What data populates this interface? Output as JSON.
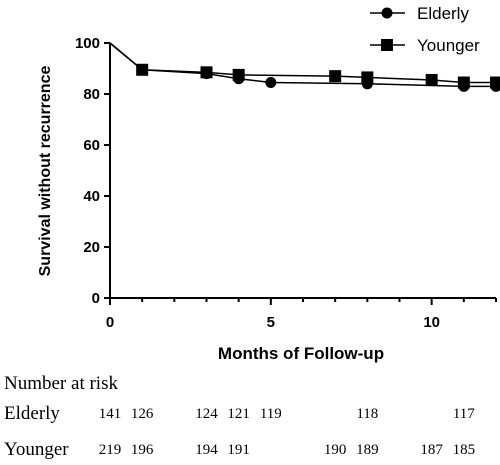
{
  "chart_data": {
    "type": "line",
    "xlabel": "Months of Follow-up",
    "ylabel": "Survival without recurrence",
    "xlim": [
      0,
      12
    ],
    "ylim": [
      0,
      100
    ],
    "xticks": [
      0,
      5,
      10
    ],
    "yticks": [
      0,
      20,
      40,
      60,
      80,
      100
    ],
    "legend_position": "top-right",
    "series": [
      {
        "name": "Elderly",
        "marker": "circle",
        "x": [
          0,
          1,
          3,
          4,
          5,
          8,
          11,
          12
        ],
        "y": [
          100,
          89.5,
          88,
          86,
          84.5,
          84,
          83,
          83
        ],
        "marked_x": [
          1,
          3,
          4,
          5,
          8,
          11,
          12
        ]
      },
      {
        "name": "Younger",
        "marker": "square",
        "x": [
          0,
          1,
          3,
          4,
          7,
          8,
          10,
          11,
          12
        ],
        "y": [
          100,
          89.5,
          88.5,
          87.5,
          87,
          86.5,
          85.5,
          84.5,
          84.5
        ],
        "marked_x": [
          1,
          3,
          4,
          7,
          8,
          10,
          11,
          12
        ]
      }
    ],
    "risk_table": {
      "title": "Number at risk",
      "rows": [
        {
          "label": "Elderly",
          "entries": [
            {
              "x": 0,
              "n": "141"
            },
            {
              "x": 1,
              "n": "126"
            },
            {
              "x": 3,
              "n": "124"
            },
            {
              "x": 4,
              "n": "121"
            },
            {
              "x": 5,
              "n": "119"
            },
            {
              "x": 8,
              "n": "118"
            },
            {
              "x": 11,
              "n": "117"
            }
          ]
        },
        {
          "label": "Younger",
          "entries": [
            {
              "x": 0,
              "n": "219"
            },
            {
              "x": 1,
              "n": "196"
            },
            {
              "x": 3,
              "n": "194"
            },
            {
              "x": 4,
              "n": "191"
            },
            {
              "x": 7,
              "n": "190"
            },
            {
              "x": 8,
              "n": "189"
            },
            {
              "x": 10,
              "n": "187"
            },
            {
              "x": 11,
              "n": "185"
            }
          ]
        }
      ]
    }
  }
}
